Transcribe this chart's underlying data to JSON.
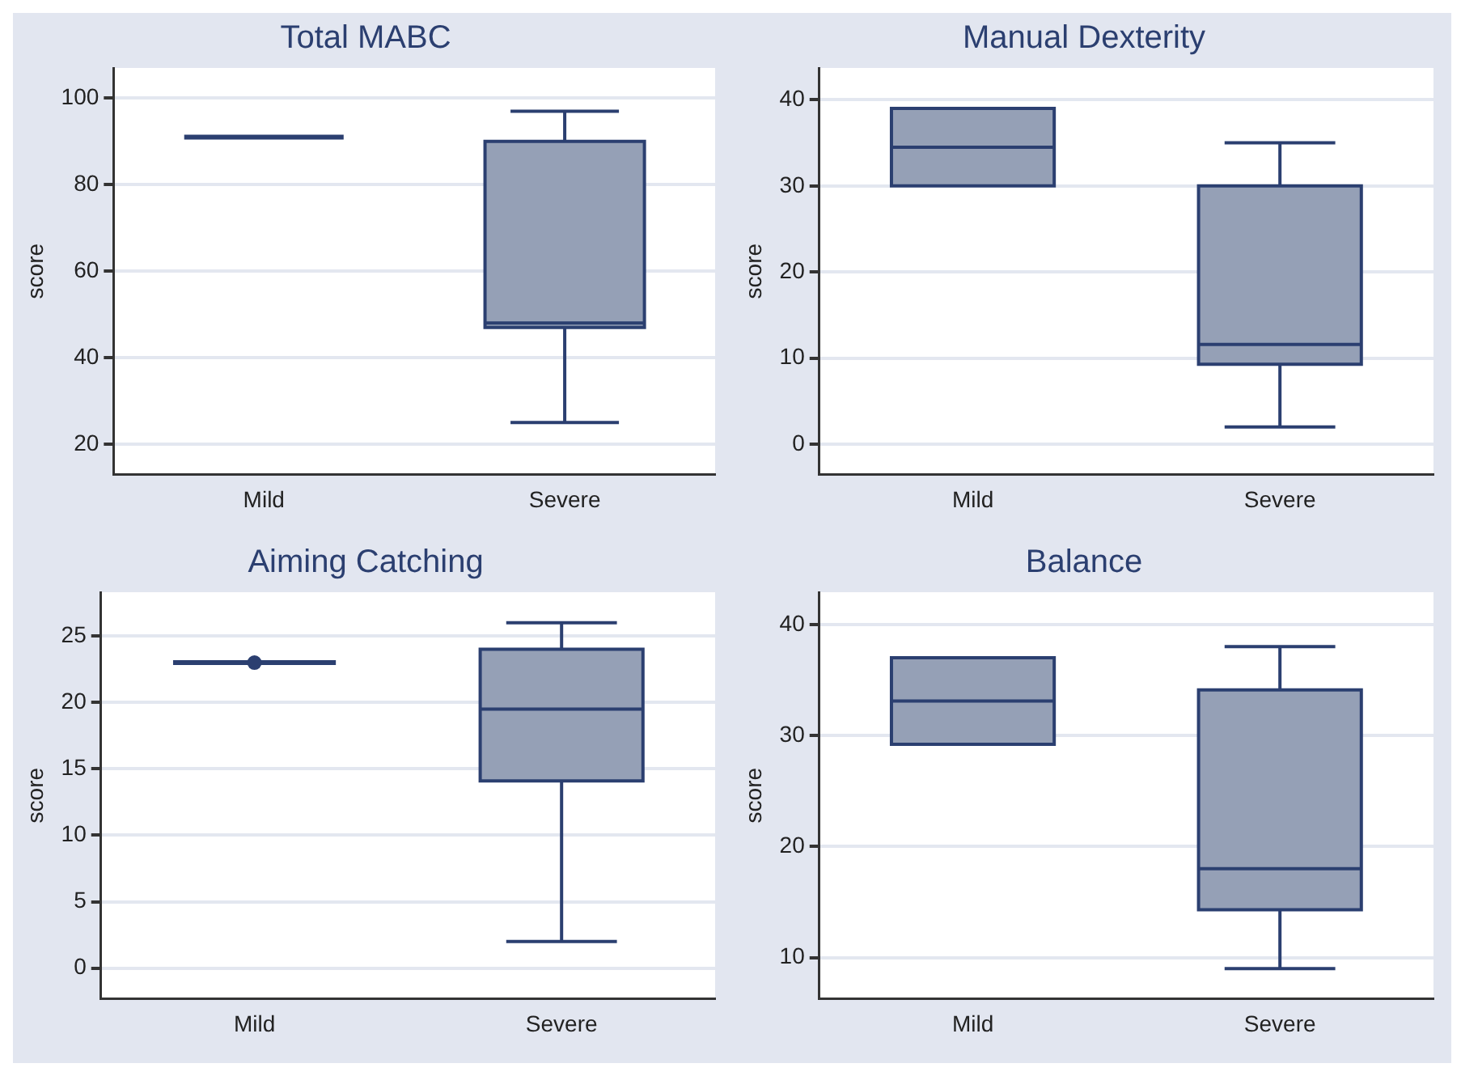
{
  "chart_data": [
    {
      "type": "box",
      "title": "Total MABC",
      "ylabel": "score",
      "categories": [
        "Mild",
        "Severe"
      ],
      "colors": [
        "#2b3f70",
        "#95a0b6"
      ],
      "ylim": [
        13,
        107
      ],
      "yticks": [
        20,
        40,
        60,
        80,
        100
      ],
      "grid": "y",
      "legend": false,
      "boxes": [
        {
          "low": 91,
          "q1": 91,
          "median": 91,
          "q3": 91,
          "high": 91
        },
        {
          "low": 25,
          "q1": 47,
          "median": 48,
          "q3": 90,
          "high": 97
        }
      ]
    },
    {
      "type": "box",
      "title": "Manual Dexterity",
      "ylabel": "score",
      "categories": [
        "Mild",
        "Severe"
      ],
      "color": "#95a0b6",
      "ylim": [
        -3.5,
        43.7
      ],
      "yticks": [
        0,
        10,
        20,
        30,
        40
      ],
      "grid": "y",
      "legend": false,
      "boxes": [
        {
          "low": 30,
          "q1": 30,
          "median": 34.5,
          "q3": 39,
          "high": 39
        },
        {
          "low": 2,
          "q1": 9.3,
          "median": 11.6,
          "q3": 30,
          "high": 35
        }
      ]
    },
    {
      "type": "box",
      "title": "Aiming Catching",
      "ylabel": "score",
      "categories": [
        "Mild",
        "Severe"
      ],
      "colors": [
        "#2b3f70",
        "#95a0b6"
      ],
      "ylim": [
        -2.3,
        28.3
      ],
      "yticks": [
        0,
        5,
        10,
        15,
        20,
        25
      ],
      "grid": "y",
      "legend": false,
      "boxes": [
        {
          "low": 23,
          "q1": 23,
          "median": 23,
          "q3": 23,
          "high": 23,
          "outliers": [
            23
          ]
        },
        {
          "low": 2,
          "q1": 14.1,
          "median": 19.5,
          "q3": 24,
          "high": 26
        }
      ]
    },
    {
      "type": "box",
      "title": "Balance",
      "ylabel": "score",
      "categories": [
        "Mild",
        "Severe"
      ],
      "color": "#95a0b6",
      "ylim": [
        6.3,
        42.9
      ],
      "yticks": [
        10,
        20,
        30,
        40
      ],
      "grid": "y",
      "legend": false,
      "boxes": [
        {
          "low": 29.2,
          "q1": 29.2,
          "median": 33.1,
          "q3": 37,
          "high": 37
        },
        {
          "low": 9,
          "q1": 14.3,
          "median": 18,
          "q3": 34.1,
          "high": 38
        }
      ]
    }
  ]
}
